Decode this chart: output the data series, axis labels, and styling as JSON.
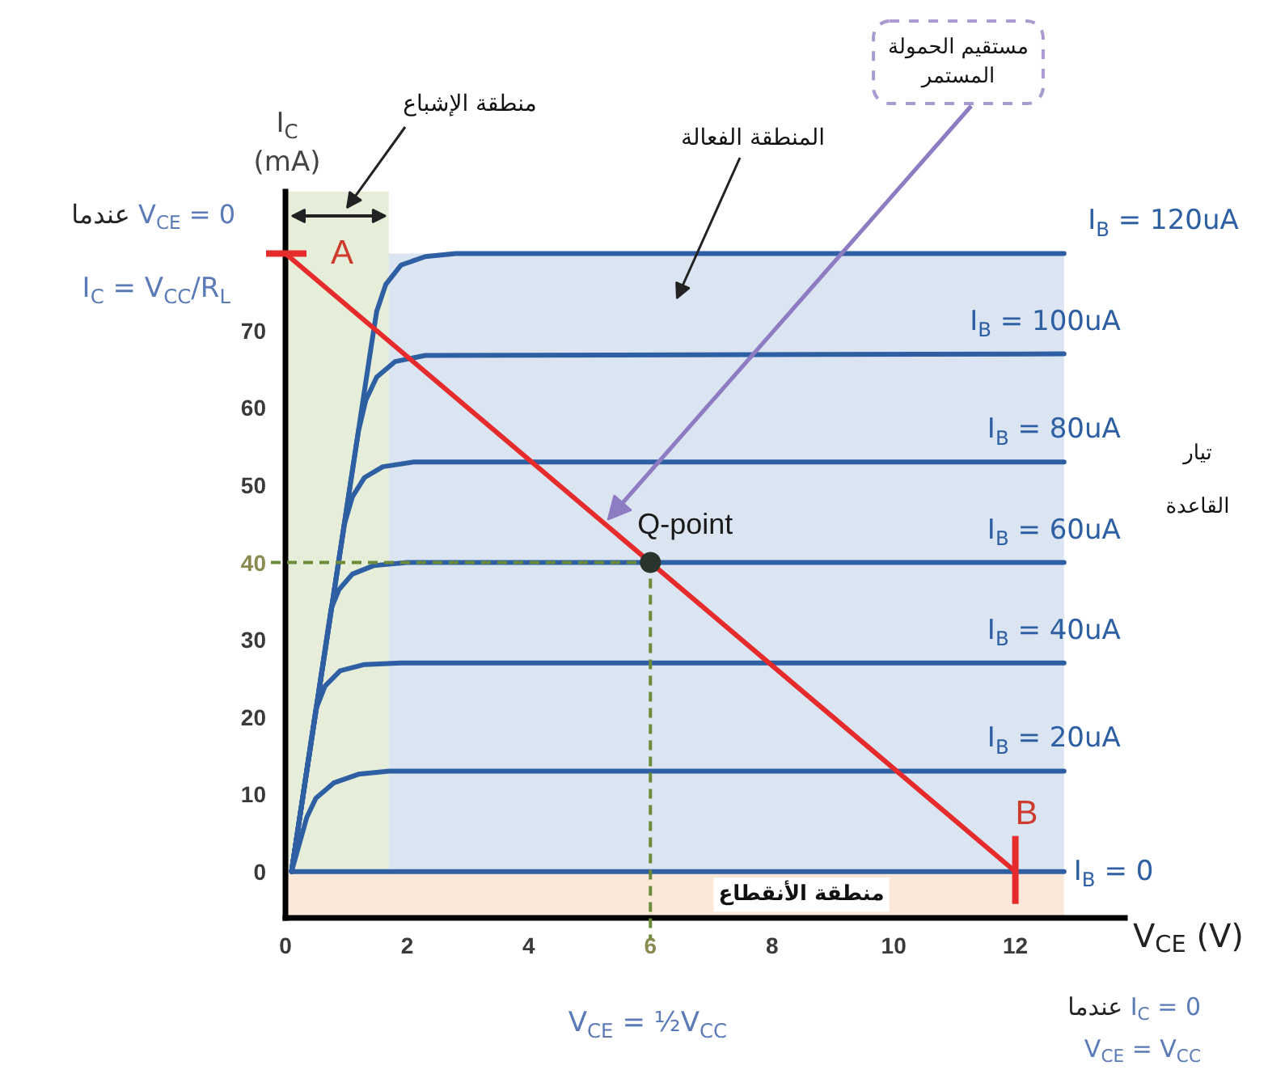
{
  "chart_data": {
    "type": "line",
    "xlabel": "V$_{CE}$ (V)",
    "ylabel": "I$_{C}$ (mA)",
    "legend_title": "تيار القاعدة",
    "xlim": [
      0,
      13.8
    ],
    "ylim": [
      -6,
      88
    ],
    "xticks": [
      0,
      2,
      4,
      6,
      8,
      10,
      12
    ],
    "yticks": [
      0,
      10,
      20,
      30,
      40,
      50,
      60,
      70
    ],
    "series": [
      {
        "name": "I$_{B}$ = 0",
        "color": "#2e5fa3",
        "x": [
          0.1,
          12.8
        ],
        "values": [
          0,
          0
        ]
      },
      {
        "name": "I$_{B}$ = 20uA",
        "color": "#2e5fa3",
        "x": [
          0.1,
          0.35,
          0.5,
          0.8,
          1.2,
          1.7,
          12.8
        ],
        "values": [
          0,
          7,
          9.5,
          11.5,
          12.6,
          13,
          13
        ]
      },
      {
        "name": "I$_{B}$ = 40uA",
        "color": "#2e5fa3",
        "x": [
          0.1,
          0.5,
          0.65,
          0.9,
          1.3,
          1.9,
          12.8
        ],
        "values": [
          0,
          21,
          24,
          26,
          26.8,
          27,
          27
        ]
      },
      {
        "name": "I$_{B}$ = 60uA",
        "color": "#2e5fa3",
        "x": [
          0.1,
          0.75,
          0.88,
          1.1,
          1.45,
          2.0,
          12.8
        ],
        "values": [
          0,
          34,
          36.5,
          38.5,
          39.6,
          40,
          40
        ]
      },
      {
        "name": "I$_{B}$ = 80uA",
        "color": "#2e5fa3",
        "x": [
          0.1,
          0.97,
          1.1,
          1.3,
          1.6,
          2.1,
          12.8
        ],
        "values": [
          0,
          45,
          48.5,
          51,
          52.4,
          53,
          53
        ]
      },
      {
        "name": "I$_{B}$ = 100uA",
        "color": "#2e5fa3",
        "x": [
          0.1,
          1.2,
          1.32,
          1.5,
          1.8,
          2.3,
          12.8
        ],
        "values": [
          0,
          57,
          61,
          64,
          66,
          66.8,
          67
        ]
      },
      {
        "name": "I$_{B}$ = 120uA",
        "color": "#2e5fa3",
        "x": [
          0.1,
          1.41,
          1.5,
          1.65,
          1.9,
          2.3,
          2.8,
          12.8
        ],
        "values": [
          0,
          68,
          72.5,
          76,
          78.5,
          79.6,
          80,
          80
        ]
      },
      {
        "type": "line",
        "color": "#e52b2b",
        "x": [
          0,
          12
        ],
        "values": [
          80,
          0
        ]
      }
    ],
    "bands": [
      {
        "axis": "y",
        "from": 0,
        "to": 80,
        "label": "المنطقة الفعالة",
        "color": "#dbe4f1"
      },
      {
        "axis": "x",
        "from": 0,
        "to": 1.7,
        "label": "منطقة الإشباع",
        "color": "#e6eed9"
      },
      {
        "axis": "y",
        "from": -6,
        "to": 0,
        "label": "منطقة الأنقطاع",
        "color": "#fbe8d8"
      }
    ],
    "annotations": [
      {
        "text": "A",
        "x": 0,
        "y": 80
      },
      {
        "text": "B",
        "x": 12,
        "y": 0
      },
      {
        "text": "Q-point",
        "x": 6,
        "y": 40
      },
      "عندما V$_{CE}$ = 0",
      "I$_{C}$ = V$_{CC}$/R$_{L}$",
      "V$_{CE}$ = ½V$_{CC}$",
      "عندما I$_{C}$ = 0",
      "V$_{CE}$ = V$_{CC}$",
      {
        "text": "مستقيم الحمولة المستمر",
        "x": 5.3,
        "y": 44.7
      }
    ]
  }
}
